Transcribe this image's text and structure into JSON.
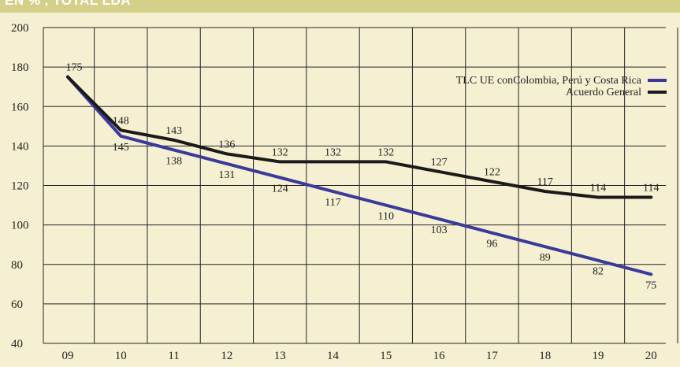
{
  "header": {
    "text": "EN % , TOTAL LDA"
  },
  "chart_data": {
    "type": "line",
    "categories": [
      "09",
      "10",
      "11",
      "12",
      "13",
      "14",
      "15",
      "16",
      "17",
      "18",
      "19",
      "20"
    ],
    "ylim": [
      40,
      200
    ],
    "yticks": [
      40,
      60,
      80,
      100,
      120,
      140,
      160,
      180,
      200
    ],
    "grid": {
      "vertical": true,
      "horizontal": true
    },
    "legend_position": "top-right",
    "series": [
      {
        "name": "TLC UE conColombia, Perú y Costa Rica",
        "color": "#3a3a9c",
        "values": [
          175,
          145,
          138,
          131,
          124,
          117,
          110,
          103,
          96,
          89,
          82,
          75
        ]
      },
      {
        "name": "Acuerdo General",
        "color": "#1a1a1a",
        "values": [
          175,
          148,
          143,
          136,
          132,
          132,
          132,
          127,
          122,
          117,
          114,
          114
        ]
      }
    ]
  }
}
